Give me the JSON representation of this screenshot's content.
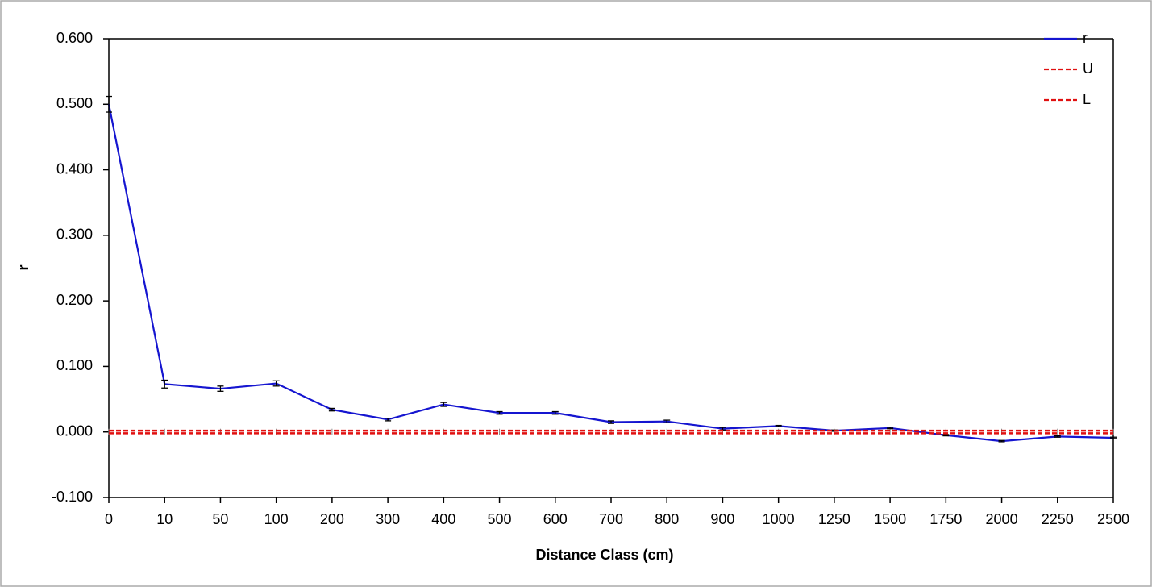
{
  "chart_data": {
    "type": "line",
    "x_label": "Distance Class (cm)",
    "y_label": "r",
    "categories": [
      "0",
      "10",
      "50",
      "100",
      "200",
      "300",
      "400",
      "500",
      "600",
      "700",
      "800",
      "900",
      "1000",
      "1250",
      "1500",
      "1750",
      "2000",
      "2250",
      "2500"
    ],
    "series": [
      {
        "name": "r",
        "color": "#1515d0",
        "dash": false,
        "values": [
          0.5,
          0.073,
          0.066,
          0.074,
          0.034,
          0.019,
          0.042,
          0.029,
          0.029,
          0.015,
          0.016,
          0.005,
          0.009,
          0.002,
          0.006,
          -0.005,
          -0.014,
          -0.007,
          -0.009
        ],
        "errors": [
          0.012,
          0.006,
          0.004,
          0.004,
          0.002,
          0.002,
          0.003,
          0.002,
          0.002,
          0.002,
          0.002,
          0.002,
          0.001,
          0.001,
          0.001,
          0.001,
          0.001,
          0.001,
          0.001
        ]
      },
      {
        "name": "U",
        "color": "#e01010",
        "dash": true,
        "values": [
          0.002,
          0.002,
          0.002,
          0.002,
          0.002,
          0.002,
          0.002,
          0.002,
          0.002,
          0.002,
          0.002,
          0.002,
          0.002,
          0.002,
          0.002,
          0.002,
          0.002,
          0.002,
          0.002
        ]
      },
      {
        "name": "L",
        "color": "#e01010",
        "dash": true,
        "values": [
          -0.002,
          -0.002,
          -0.002,
          -0.002,
          -0.002,
          -0.002,
          -0.002,
          -0.002,
          -0.002,
          -0.002,
          -0.002,
          -0.002,
          -0.002,
          -0.002,
          -0.002,
          -0.002,
          -0.002,
          -0.002,
          -0.002
        ]
      }
    ],
    "ylim": [
      -0.1,
      0.6
    ],
    "yticks": [
      {
        "value": -0.1,
        "label": "-0.100"
      },
      {
        "value": 0,
        "label": "0.000"
      },
      {
        "value": 0.1,
        "label": "0.100"
      },
      {
        "value": 0.2,
        "label": "0.200"
      },
      {
        "value": 0.3,
        "label": "0.300"
      },
      {
        "value": 0.4,
        "label": "0.400"
      },
      {
        "value": 0.5,
        "label": "0.500"
      },
      {
        "value": 0.6,
        "label": "0.600"
      }
    ],
    "grid": false,
    "legend": "top-right"
  }
}
